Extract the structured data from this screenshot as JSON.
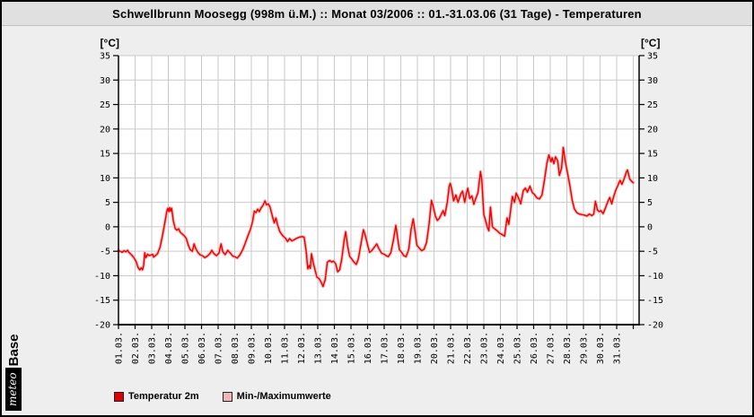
{
  "title": "Schwellbrunn Moosegg (998m ü.M.) :: Monat 03/2006 :: 01.-31.03.06 (31 Tage) - Temperaturen",
  "logo": {
    "meteo": "meteo",
    "base": "Base"
  },
  "colors": {
    "line": "#ee0000",
    "band": "#f6b4b4",
    "grid": "#c9c9c9",
    "axis": "#000000",
    "plot_bg": "#ffffff",
    "page_bg": "#eeeeee",
    "titlebar_bg": "#e0e0e0",
    "legend_temp_swatch": "#dd0000",
    "legend_minmax_swatch": "#f3b6b6"
  },
  "chart_data": {
    "type": "line",
    "title": "Schwellbrunn Moosegg (998m ü.M.) :: Monat 03/2006 :: 01.-31.03.06 (31 Tage) - Temperaturen",
    "unit_left": "[°C]",
    "unit_right": "[°C]",
    "ylim": [
      -20,
      35
    ],
    "yticks": [
      35,
      30,
      25,
      20,
      15,
      10,
      5,
      0,
      -5,
      -10,
      -15,
      -20
    ],
    "x_categories": [
      "01.03.",
      "02.03.",
      "03.03.",
      "04.03.",
      "05.03.",
      "06.03.",
      "07.03.",
      "08.03.",
      "09.03.",
      "10.03.",
      "11.03.",
      "12.03.",
      "13.03.",
      "14.03.",
      "15.03.",
      "16.03.",
      "17.03.",
      "18.03.",
      "19.03.",
      "20.03.",
      "21.03.",
      "22.03.",
      "23.03.",
      "24.03.",
      "25.03.",
      "26.03.",
      "27.03.",
      "28.03.",
      "29.03.",
      "30.03.",
      "31.03."
    ],
    "x_days_total": 31.35,
    "grid": true,
    "legend": [
      {
        "label": "Temperatur 2m",
        "color": "#dd0000"
      },
      {
        "label": "Min-/Maximumwerte",
        "color": "#f3b6b6"
      }
    ],
    "series": [
      {
        "name": "Temperatur 2m",
        "color": "#ee0000",
        "band_color": "#f6b4b4",
        "points": [
          [
            0.0,
            -4.8
          ],
          [
            0.1,
            -5.0
          ],
          [
            0.22,
            -5.2
          ],
          [
            0.33,
            -4.9
          ],
          [
            0.45,
            -5.1
          ],
          [
            0.55,
            -4.8
          ],
          [
            0.65,
            -5.3
          ],
          [
            0.8,
            -5.8
          ],
          [
            0.93,
            -6.3
          ],
          [
            1.05,
            -7.0
          ],
          [
            1.18,
            -8.3
          ],
          [
            1.28,
            -8.8
          ],
          [
            1.38,
            -8.4
          ],
          [
            1.45,
            -8.8
          ],
          [
            1.52,
            -7.8
          ],
          [
            1.58,
            -5.3
          ],
          [
            1.65,
            -6.3
          ],
          [
            1.75,
            -5.6
          ],
          [
            1.85,
            -5.9
          ],
          [
            1.95,
            -5.8
          ],
          [
            2.05,
            -5.6
          ],
          [
            2.12,
            -6.2
          ],
          [
            2.22,
            -5.9
          ],
          [
            2.35,
            -5.5
          ],
          [
            2.5,
            -4.2
          ],
          [
            2.65,
            -1.8
          ],
          [
            2.8,
            1.0
          ],
          [
            2.9,
            3.0
          ],
          [
            2.97,
            3.8
          ],
          [
            3.03,
            3.1
          ],
          [
            3.08,
            3.9
          ],
          [
            3.14,
            3.2
          ],
          [
            3.2,
            3.8
          ],
          [
            3.3,
            1.2
          ],
          [
            3.42,
            -0.4
          ],
          [
            3.52,
            -0.7
          ],
          [
            3.62,
            -0.4
          ],
          [
            3.72,
            -1.1
          ],
          [
            3.85,
            -1.5
          ],
          [
            3.95,
            -1.8
          ],
          [
            4.08,
            -2.4
          ],
          [
            4.2,
            -3.7
          ],
          [
            4.32,
            -4.7
          ],
          [
            4.45,
            -5.0
          ],
          [
            4.55,
            -3.5
          ],
          [
            4.65,
            -4.4
          ],
          [
            4.78,
            -5.2
          ],
          [
            4.9,
            -5.7
          ],
          [
            5.05,
            -5.9
          ],
          [
            5.2,
            -6.3
          ],
          [
            5.35,
            -6.0
          ],
          [
            5.5,
            -5.5
          ],
          [
            5.62,
            -4.8
          ],
          [
            5.75,
            -5.5
          ],
          [
            5.9,
            -5.9
          ],
          [
            6.05,
            -5.4
          ],
          [
            6.18,
            -3.5
          ],
          [
            6.28,
            -5.1
          ],
          [
            6.42,
            -5.7
          ],
          [
            6.58,
            -4.8
          ],
          [
            6.72,
            -5.3
          ],
          [
            6.88,
            -6.0
          ],
          [
            7.0,
            -6.1
          ],
          [
            7.15,
            -6.4
          ],
          [
            7.3,
            -5.8
          ],
          [
            7.48,
            -4.7
          ],
          [
            7.65,
            -3.2
          ],
          [
            7.82,
            -1.6
          ],
          [
            7.95,
            -0.5
          ],
          [
            8.08,
            1.2
          ],
          [
            8.18,
            3.2
          ],
          [
            8.28,
            2.9
          ],
          [
            8.38,
            3.6
          ],
          [
            8.48,
            3.1
          ],
          [
            8.58,
            3.8
          ],
          [
            8.7,
            4.4
          ],
          [
            8.82,
            5.3
          ],
          [
            8.92,
            4.5
          ],
          [
            9.02,
            4.7
          ],
          [
            9.12,
            4.1
          ],
          [
            9.25,
            2.4
          ],
          [
            9.38,
            0.8
          ],
          [
            9.48,
            1.8
          ],
          [
            9.58,
            0.4
          ],
          [
            9.72,
            -1.0
          ],
          [
            9.88,
            -1.8
          ],
          [
            10.05,
            -2.3
          ],
          [
            10.18,
            -3.0
          ],
          [
            10.3,
            -2.4
          ],
          [
            10.45,
            -2.9
          ],
          [
            10.6,
            -2.6
          ],
          [
            10.75,
            -2.3
          ],
          [
            10.9,
            -2.1
          ],
          [
            11.05,
            -2.0
          ],
          [
            11.18,
            -2.1
          ],
          [
            11.3,
            -5.0
          ],
          [
            11.4,
            -8.6
          ],
          [
            11.48,
            -7.9
          ],
          [
            11.55,
            -8.5
          ],
          [
            11.62,
            -5.5
          ],
          [
            11.72,
            -7.2
          ],
          [
            11.85,
            -9.0
          ],
          [
            11.95,
            -10.3
          ],
          [
            12.08,
            -10.6
          ],
          [
            12.2,
            -11.3
          ],
          [
            12.32,
            -12.2
          ],
          [
            12.45,
            -10.8
          ],
          [
            12.58,
            -7.2
          ],
          [
            12.72,
            -6.9
          ],
          [
            12.85,
            -7.2
          ],
          [
            12.95,
            -7.0
          ],
          [
            13.08,
            -7.6
          ],
          [
            13.2,
            -9.2
          ],
          [
            13.32,
            -8.8
          ],
          [
            13.45,
            -6.5
          ],
          [
            13.58,
            -3.0
          ],
          [
            13.68,
            -1.0
          ],
          [
            13.8,
            -4.0
          ],
          [
            13.92,
            -6.0
          ],
          [
            14.05,
            -6.6
          ],
          [
            14.18,
            -7.2
          ],
          [
            14.32,
            -7.7
          ],
          [
            14.45,
            -6.5
          ],
          [
            14.6,
            -3.5
          ],
          [
            14.75,
            -0.6
          ],
          [
            14.88,
            -2.0
          ],
          [
            15.02,
            -4.0
          ],
          [
            15.12,
            -5.2
          ],
          [
            15.25,
            -4.9
          ],
          [
            15.4,
            -4.2
          ],
          [
            15.55,
            -3.5
          ],
          [
            15.7,
            -4.6
          ],
          [
            15.85,
            -5.4
          ],
          [
            16.0,
            -5.6
          ],
          [
            16.12,
            -5.9
          ],
          [
            16.25,
            -6.1
          ],
          [
            16.4,
            -5.3
          ],
          [
            16.55,
            -2.8
          ],
          [
            16.7,
            0.3
          ],
          [
            16.82,
            -2.6
          ],
          [
            16.92,
            -4.7
          ],
          [
            17.05,
            -5.2
          ],
          [
            17.18,
            -5.9
          ],
          [
            17.32,
            -6.1
          ],
          [
            17.48,
            -4.6
          ],
          [
            17.62,
            -0.5
          ],
          [
            17.75,
            1.6
          ],
          [
            17.88,
            -1.5
          ],
          [
            17.97,
            -3.8
          ],
          [
            18.1,
            -4.3
          ],
          [
            18.25,
            -4.9
          ],
          [
            18.4,
            -4.6
          ],
          [
            18.55,
            -3.2
          ],
          [
            18.7,
            0.5
          ],
          [
            18.85,
            5.4
          ],
          [
            18.95,
            4.2
          ],
          [
            19.08,
            2.2
          ],
          [
            19.2,
            1.3
          ],
          [
            19.32,
            1.7
          ],
          [
            19.45,
            2.6
          ],
          [
            19.55,
            3.3
          ],
          [
            19.65,
            2.3
          ],
          [
            19.8,
            5.0
          ],
          [
            19.92,
            8.3
          ],
          [
            19.98,
            8.9
          ],
          [
            20.08,
            7.5
          ],
          [
            20.18,
            5.3
          ],
          [
            20.32,
            6.5
          ],
          [
            20.45,
            5.0
          ],
          [
            20.6,
            6.6
          ],
          [
            20.72,
            7.3
          ],
          [
            20.85,
            5.0
          ],
          [
            20.95,
            6.8
          ],
          [
            21.03,
            7.9
          ],
          [
            21.15,
            5.8
          ],
          [
            21.28,
            6.3
          ],
          [
            21.4,
            4.6
          ],
          [
            21.52,
            5.8
          ],
          [
            21.65,
            7.0
          ],
          [
            21.8,
            11.3
          ],
          [
            21.88,
            9.5
          ],
          [
            22.0,
            2.5
          ],
          [
            22.1,
            1.3
          ],
          [
            22.22,
            -0.2
          ],
          [
            22.3,
            -0.8
          ],
          [
            22.4,
            4.0
          ],
          [
            22.52,
            0.0
          ],
          [
            22.65,
            -0.4
          ],
          [
            22.8,
            -0.8
          ],
          [
            22.95,
            -1.3
          ],
          [
            23.1,
            -1.6
          ],
          [
            23.25,
            -1.9
          ],
          [
            23.4,
            1.8
          ],
          [
            23.5,
            0.5
          ],
          [
            23.62,
            3.5
          ],
          [
            23.72,
            6.2
          ],
          [
            23.85,
            5.0
          ],
          [
            23.95,
            6.9
          ],
          [
            24.1,
            5.8
          ],
          [
            24.22,
            4.7
          ],
          [
            24.38,
            7.4
          ],
          [
            24.5,
            7.9
          ],
          [
            24.62,
            7.1
          ],
          [
            24.78,
            8.3
          ],
          [
            24.92,
            7.0
          ],
          [
            25.05,
            6.6
          ],
          [
            25.2,
            5.9
          ],
          [
            25.35,
            5.7
          ],
          [
            25.5,
            6.5
          ],
          [
            25.65,
            9.5
          ],
          [
            25.8,
            13.0
          ],
          [
            25.92,
            14.7
          ],
          [
            26.05,
            13.3
          ],
          [
            26.12,
            14.1
          ],
          [
            26.22,
            12.9
          ],
          [
            26.32,
            14.3
          ],
          [
            26.45,
            13.5
          ],
          [
            26.55,
            10.5
          ],
          [
            26.68,
            12.0
          ],
          [
            26.78,
            16.2
          ],
          [
            26.9,
            13.5
          ],
          [
            27.05,
            10.8
          ],
          [
            27.18,
            8.4
          ],
          [
            27.32,
            5.5
          ],
          [
            27.45,
            3.7
          ],
          [
            27.6,
            2.9
          ],
          [
            27.75,
            2.6
          ],
          [
            27.9,
            2.5
          ],
          [
            28.05,
            2.4
          ],
          [
            28.2,
            2.2
          ],
          [
            28.35,
            2.6
          ],
          [
            28.5,
            2.3
          ],
          [
            28.62,
            2.6
          ],
          [
            28.72,
            5.2
          ],
          [
            28.85,
            3.4
          ],
          [
            28.95,
            3.1
          ],
          [
            29.05,
            3.3
          ],
          [
            29.18,
            2.7
          ],
          [
            29.32,
            3.8
          ],
          [
            29.45,
            5.0
          ],
          [
            29.58,
            6.0
          ],
          [
            29.7,
            4.7
          ],
          [
            29.85,
            6.5
          ],
          [
            29.97,
            7.7
          ],
          [
            30.08,
            8.5
          ],
          [
            30.2,
            9.5
          ],
          [
            30.32,
            8.7
          ],
          [
            30.45,
            9.8
          ],
          [
            30.58,
            11.2
          ],
          [
            30.65,
            11.6
          ],
          [
            30.78,
            9.8
          ],
          [
            30.9,
            9.3
          ],
          [
            31.0,
            9.0
          ]
        ]
      }
    ]
  }
}
